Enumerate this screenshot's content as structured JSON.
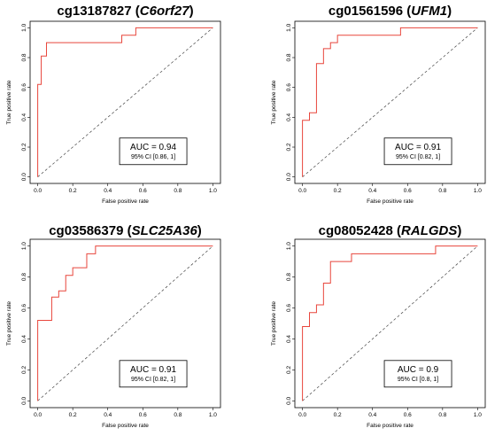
{
  "chart_data": [
    {
      "type": "line",
      "title_code": "cg13187827",
      "title_gene": "C6orf27",
      "xlabel": "False positive rate",
      "ylabel": "True positive rate",
      "xlim": [
        0,
        1
      ],
      "ylim": [
        0,
        1
      ],
      "ticks": [
        "0.0",
        "0.2",
        "0.4",
        "0.6",
        "0.8",
        "1.0"
      ],
      "auc_label": "AUC = 0.94",
      "ci_label": "95% CI [0.86, 1]",
      "roc_color": "#e8463c",
      "series": [
        {
          "x": [
            0,
            0,
            0.02,
            0.02,
            0.05,
            0.05,
            0.48,
            0.48,
            0.56,
            0.56,
            1
          ],
          "y": [
            0,
            0.62,
            0.62,
            0.81,
            0.81,
            0.9,
            0.9,
            0.95,
            0.95,
            1,
            1
          ]
        }
      ],
      "diagonal": [
        [
          0,
          0
        ],
        [
          1,
          1
        ]
      ]
    },
    {
      "type": "line",
      "title_code": "cg01561596",
      "title_gene": "UFM1",
      "xlabel": "False positive rate",
      "ylabel": "True positive rate",
      "xlim": [
        0,
        1
      ],
      "ylim": [
        0,
        1
      ],
      "ticks": [
        "0.0",
        "0.2",
        "0.4",
        "0.6",
        "0.8",
        "1.0"
      ],
      "auc_label": "AUC = 0.91",
      "ci_label": "95% CI [0.82, 1]",
      "roc_color": "#e8463c",
      "series": [
        {
          "x": [
            0,
            0,
            0.04,
            0.04,
            0.08,
            0.08,
            0.12,
            0.12,
            0.16,
            0.16,
            0.2,
            0.2,
            0.56,
            0.56,
            1
          ],
          "y": [
            0,
            0.38,
            0.38,
            0.43,
            0.43,
            0.76,
            0.76,
            0.86,
            0.86,
            0.9,
            0.9,
            0.95,
            0.95,
            1,
            1
          ]
        }
      ],
      "diagonal": [
        [
          0,
          0
        ],
        [
          1,
          1
        ]
      ]
    },
    {
      "type": "line",
      "title_code": "cg03586379",
      "title_gene": "SLC25A36",
      "xlabel": "False positive rate",
      "ylabel": "True positive rate",
      "xlim": [
        0,
        1
      ],
      "ylim": [
        0,
        1
      ],
      "ticks": [
        "0.0",
        "0.2",
        "0.4",
        "0.6",
        "0.8",
        "1.0"
      ],
      "auc_label": "AUC = 0.91",
      "ci_label": "95% CI [0.82, 1]",
      "roc_color": "#e8463c",
      "series": [
        {
          "x": [
            0,
            0,
            0.08,
            0.08,
            0.12,
            0.12,
            0.16,
            0.16,
            0.2,
            0.2,
            0.28,
            0.28,
            0.33,
            0.33,
            1
          ],
          "y": [
            0,
            0.52,
            0.52,
            0.67,
            0.67,
            0.71,
            0.71,
            0.81,
            0.81,
            0.86,
            0.86,
            0.95,
            0.95,
            1,
            1
          ]
        }
      ],
      "diagonal": [
        [
          0,
          0
        ],
        [
          1,
          1
        ]
      ]
    },
    {
      "type": "line",
      "title_code": "cg08052428",
      "title_gene": "RALGDS",
      "xlabel": "False positive rate",
      "ylabel": "True positive rate",
      "xlim": [
        0,
        1
      ],
      "ylim": [
        0,
        1
      ],
      "ticks": [
        "0.0",
        "0.2",
        "0.4",
        "0.6",
        "0.8",
        "1.0"
      ],
      "auc_label": "AUC = 0.9",
      "ci_label": "95% CI [0.8, 1]",
      "roc_color": "#e8463c",
      "series": [
        {
          "x": [
            0,
            0,
            0.04,
            0.04,
            0.08,
            0.08,
            0.12,
            0.12,
            0.16,
            0.16,
            0.28,
            0.28,
            0.76,
            0.76,
            1
          ],
          "y": [
            0,
            0.48,
            0.48,
            0.57,
            0.57,
            0.62,
            0.62,
            0.76,
            0.76,
            0.9,
            0.9,
            0.95,
            0.95,
            1,
            1
          ]
        }
      ],
      "diagonal": [
        [
          0,
          0
        ],
        [
          1,
          1
        ]
      ]
    }
  ]
}
